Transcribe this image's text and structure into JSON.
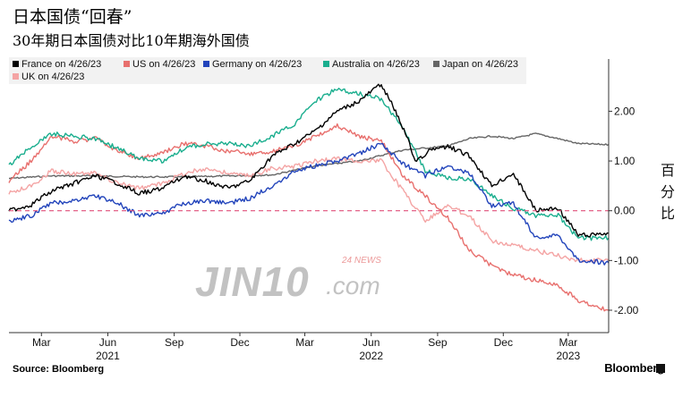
{
  "title": "日本国债“回春”",
  "subtitle": "30年期日本国债对比10年期海外国债",
  "source": "Source: Bloomberg",
  "brand": "Bloomberg",
  "watermark": {
    "main": "JIN10",
    "com": ".com",
    "news": "24  NEWS"
  },
  "chart_data": {
    "type": "line",
    "title": "日本国债“回春”",
    "subtitle": "30年期日本国债对比10年期海外国债",
    "ylabel": "百分比",
    "ylim": [
      -2.45,
      3.05
    ],
    "xlim": [
      "2021-01-15",
      "2023-04-26"
    ],
    "y_ticks": [
      {
        "value": 2.0,
        "label": "2.00"
      },
      {
        "value": 1.0,
        "label": "1.00"
      },
      {
        "value": 0.0,
        "label": "0.00"
      },
      {
        "value": -1.0,
        "label": "-1.00"
      },
      {
        "value": -2.0,
        "label": "-2.00"
      }
    ],
    "x_ticks": [
      {
        "date": "2021-03-01",
        "label": "Mar"
      },
      {
        "date": "2021-06-01",
        "label": "Jun"
      },
      {
        "date": "2021-09-01",
        "label": "Sep"
      },
      {
        "date": "2021-12-01",
        "label": "Dec"
      },
      {
        "date": "2022-03-01",
        "label": "Mar"
      },
      {
        "date": "2022-06-01",
        "label": "Jun"
      },
      {
        "date": "2022-09-01",
        "label": "Sep"
      },
      {
        "date": "2022-12-01",
        "label": "Dec"
      },
      {
        "date": "2023-03-01",
        "label": "Mar"
      }
    ],
    "year_labels": [
      {
        "date": "2021-06-01",
        "label": "2021"
      },
      {
        "date": "2022-06-01",
        "label": "2022"
      },
      {
        "date": "2023-03-01",
        "label": "2023"
      }
    ],
    "reference_line": {
      "y": 0,
      "color": "#e0507a",
      "style": "dashed"
    },
    "legend_position": "top-left",
    "series": [
      {
        "name": "France on 4/26/23",
        "color": "#000000",
        "points": [
          [
            "2021-01-15",
            0.0
          ],
          [
            "2021-02-15",
            0.12
          ],
          [
            "2021-03-15",
            0.4
          ],
          [
            "2021-04-15",
            0.55
          ],
          [
            "2021-05-15",
            0.7
          ],
          [
            "2021-06-15",
            0.55
          ],
          [
            "2021-07-15",
            0.35
          ],
          [
            "2021-08-15",
            0.45
          ],
          [
            "2021-09-15",
            0.7
          ],
          [
            "2021-10-15",
            0.6
          ],
          [
            "2021-11-15",
            0.45
          ],
          [
            "2021-12-15",
            0.6
          ],
          [
            "2022-01-15",
            1.1
          ],
          [
            "2022-02-15",
            1.35
          ],
          [
            "2022-03-15",
            1.6
          ],
          [
            "2022-04-15",
            2.0
          ],
          [
            "2022-05-15",
            2.2
          ],
          [
            "2022-06-15",
            2.55
          ],
          [
            "2022-07-01",
            2.1
          ],
          [
            "2022-07-20",
            1.5
          ],
          [
            "2022-08-01",
            1.0
          ],
          [
            "2022-08-20",
            1.2
          ],
          [
            "2022-09-15",
            1.3
          ],
          [
            "2022-10-15",
            1.1
          ],
          [
            "2022-11-15",
            0.5
          ],
          [
            "2022-12-15",
            0.75
          ],
          [
            "2023-01-15",
            0.0
          ],
          [
            "2023-02-15",
            0.05
          ],
          [
            "2023-03-15",
            -0.5
          ],
          [
            "2023-04-26",
            -0.45
          ]
        ]
      },
      {
        "name": "US on 4/26/23",
        "color": "#e8706e",
        "points": [
          [
            "2021-01-15",
            0.6
          ],
          [
            "2021-02-15",
            1.0
          ],
          [
            "2021-03-15",
            1.5
          ],
          [
            "2021-04-15",
            1.4
          ],
          [
            "2021-05-15",
            1.45
          ],
          [
            "2021-06-15",
            1.2
          ],
          [
            "2021-07-15",
            1.05
          ],
          [
            "2021-08-15",
            1.15
          ],
          [
            "2021-09-15",
            1.35
          ],
          [
            "2021-10-15",
            1.3
          ],
          [
            "2021-11-15",
            1.2
          ],
          [
            "2021-12-15",
            1.15
          ],
          [
            "2022-01-15",
            1.2
          ],
          [
            "2022-02-15",
            1.3
          ],
          [
            "2022-03-15",
            1.5
          ],
          [
            "2022-04-15",
            1.7
          ],
          [
            "2022-05-15",
            1.5
          ],
          [
            "2022-06-15",
            1.4
          ],
          [
            "2022-07-15",
            0.7
          ],
          [
            "2022-08-15",
            0.3
          ],
          [
            "2022-09-15",
            -0.15
          ],
          [
            "2022-10-15",
            -0.8
          ],
          [
            "2022-11-15",
            -1.1
          ],
          [
            "2022-12-15",
            -1.3
          ],
          [
            "2023-01-15",
            -1.4
          ],
          [
            "2023-02-15",
            -1.5
          ],
          [
            "2023-03-15",
            -1.8
          ],
          [
            "2023-04-26",
            -2.0
          ]
        ]
      },
      {
        "name": "Germany on 4/26/23",
        "color": "#2244bb",
        "points": [
          [
            "2021-01-15",
            -0.2
          ],
          [
            "2021-02-15",
            -0.1
          ],
          [
            "2021-03-15",
            0.15
          ],
          [
            "2021-04-15",
            0.2
          ],
          [
            "2021-05-15",
            0.3
          ],
          [
            "2021-06-15",
            0.15
          ],
          [
            "2021-07-15",
            -0.1
          ],
          [
            "2021-08-15",
            -0.05
          ],
          [
            "2021-09-15",
            0.15
          ],
          [
            "2021-10-15",
            0.2
          ],
          [
            "2021-11-15",
            0.15
          ],
          [
            "2021-12-15",
            0.25
          ],
          [
            "2022-01-15",
            0.5
          ],
          [
            "2022-02-15",
            0.8
          ],
          [
            "2022-03-15",
            0.9
          ],
          [
            "2022-04-15",
            1.0
          ],
          [
            "2022-05-15",
            1.15
          ],
          [
            "2022-06-15",
            1.35
          ],
          [
            "2022-07-15",
            0.95
          ],
          [
            "2022-08-15",
            0.7
          ],
          [
            "2022-09-15",
            0.9
          ],
          [
            "2022-10-15",
            0.75
          ],
          [
            "2022-11-15",
            0.1
          ],
          [
            "2022-12-15",
            0.15
          ],
          [
            "2023-01-15",
            -0.55
          ],
          [
            "2023-02-15",
            -0.5
          ],
          [
            "2023-03-15",
            -1.0
          ],
          [
            "2023-04-26",
            -1.05
          ]
        ]
      },
      {
        "name": "Australia on 4/26/23",
        "color": "#1aae8e",
        "points": [
          [
            "2021-01-15",
            0.9
          ],
          [
            "2021-02-15",
            1.3
          ],
          [
            "2021-03-15",
            1.55
          ],
          [
            "2021-04-15",
            1.5
          ],
          [
            "2021-05-15",
            1.45
          ],
          [
            "2021-06-15",
            1.25
          ],
          [
            "2021-07-15",
            1.05
          ],
          [
            "2021-08-15",
            1.0
          ],
          [
            "2021-09-15",
            1.25
          ],
          [
            "2021-10-15",
            1.35
          ],
          [
            "2021-11-15",
            1.35
          ],
          [
            "2021-12-15",
            1.3
          ],
          [
            "2022-01-15",
            1.5
          ],
          [
            "2022-02-15",
            1.75
          ],
          [
            "2022-03-15",
            2.2
          ],
          [
            "2022-04-15",
            2.45
          ],
          [
            "2022-05-15",
            2.35
          ],
          [
            "2022-06-15",
            2.25
          ],
          [
            "2022-07-15",
            1.65
          ],
          [
            "2022-08-15",
            0.8
          ],
          [
            "2022-09-15",
            0.65
          ],
          [
            "2022-10-15",
            0.65
          ],
          [
            "2022-11-15",
            0.3
          ],
          [
            "2022-12-15",
            0.05
          ],
          [
            "2023-01-15",
            -0.1
          ],
          [
            "2023-02-15",
            -0.1
          ],
          [
            "2023-03-15",
            -0.55
          ],
          [
            "2023-04-26",
            -0.55
          ]
        ]
      },
      {
        "name": "Japan on 4/26/23",
        "color": "#666666",
        "points": [
          [
            "2021-01-15",
            0.65
          ],
          [
            "2021-03-15",
            0.7
          ],
          [
            "2021-05-15",
            0.7
          ],
          [
            "2021-07-15",
            0.68
          ],
          [
            "2021-09-15",
            0.68
          ],
          [
            "2021-11-15",
            0.7
          ],
          [
            "2022-01-15",
            0.72
          ],
          [
            "2022-03-15",
            0.9
          ],
          [
            "2022-05-15",
            1.0
          ],
          [
            "2022-07-15",
            1.22
          ],
          [
            "2022-09-15",
            1.3
          ],
          [
            "2022-10-15",
            1.45
          ],
          [
            "2022-11-15",
            1.5
          ],
          [
            "2022-12-15",
            1.45
          ],
          [
            "2023-01-15",
            1.55
          ],
          [
            "2023-02-15",
            1.45
          ],
          [
            "2023-03-15",
            1.35
          ],
          [
            "2023-04-26",
            1.33
          ]
        ]
      },
      {
        "name": "UK on 4/26/23",
        "color": "#f4a4a4",
        "points": [
          [
            "2021-01-15",
            0.35
          ],
          [
            "2021-02-15",
            0.5
          ],
          [
            "2021-03-15",
            0.8
          ],
          [
            "2021-04-15",
            0.75
          ],
          [
            "2021-05-15",
            0.75
          ],
          [
            "2021-06-15",
            0.55
          ],
          [
            "2021-07-15",
            0.45
          ],
          [
            "2021-08-15",
            0.55
          ],
          [
            "2021-09-15",
            0.75
          ],
          [
            "2021-10-15",
            0.85
          ],
          [
            "2021-11-15",
            0.75
          ],
          [
            "2021-12-15",
            0.7
          ],
          [
            "2022-01-15",
            0.85
          ],
          [
            "2022-02-15",
            0.9
          ],
          [
            "2022-03-15",
            1.0
          ],
          [
            "2022-04-15",
            1.05
          ],
          [
            "2022-05-15",
            1.0
          ],
          [
            "2022-06-15",
            1.0
          ],
          [
            "2022-07-15",
            0.4
          ],
          [
            "2022-08-15",
            -0.2
          ],
          [
            "2022-09-15",
            0.1
          ],
          [
            "2022-10-15",
            -0.1
          ],
          [
            "2022-11-15",
            -0.6
          ],
          [
            "2022-12-15",
            -0.7
          ],
          [
            "2023-01-15",
            -0.8
          ],
          [
            "2023-02-15",
            -0.9
          ],
          [
            "2023-03-15",
            -1.0
          ],
          [
            "2023-04-26",
            -1.0
          ]
        ]
      }
    ]
  }
}
